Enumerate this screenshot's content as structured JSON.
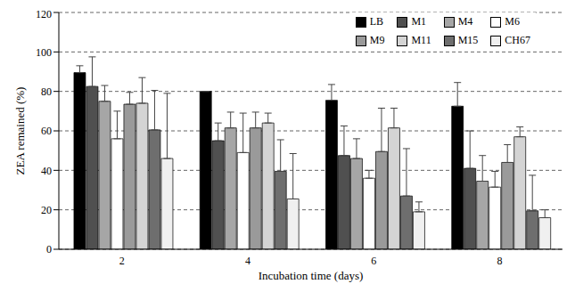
{
  "chart_data": {
    "type": "bar",
    "x_label": "Incubation time (days)",
    "y_label": "ZEA remained (%)",
    "categories": [
      "2",
      "4",
      "6",
      "8"
    ],
    "ylim": [
      0,
      120
    ],
    "yticks": [
      0,
      20,
      40,
      60,
      80,
      100,
      120
    ],
    "grid": true,
    "legend": "upper right",
    "series": [
      {
        "name": "LB",
        "color": "#000000",
        "values": [
          89.5,
          80,
          75.5,
          72.5
        ],
        "errors": [
          3.5,
          0,
          8,
          12
        ]
      },
      {
        "name": "M1",
        "color": "#505050",
        "values": [
          82.5,
          55,
          47.5,
          41
        ],
        "errors": [
          15,
          9,
          15,
          19
        ]
      },
      {
        "name": "M4",
        "color": "#a6a6a6",
        "values": [
          75,
          61.5,
          46,
          34.5
        ],
        "errors": [
          8,
          8,
          10,
          13
        ]
      },
      {
        "name": "M6",
        "color": "#ffffff",
        "values": [
          56,
          49,
          36,
          31.5
        ],
        "errors": [
          14,
          20,
          4,
          8
        ]
      },
      {
        "name": "M9",
        "color": "#9a9a9a",
        "values": [
          73.5,
          61.5,
          49.5,
          44
        ],
        "errors": [
          6,
          8,
          22,
          9
        ]
      },
      {
        "name": "M11",
        "color": "#d4d4d4",
        "values": [
          74,
          64,
          61.5,
          57
        ],
        "errors": [
          13,
          5,
          10,
          5
        ]
      },
      {
        "name": "M15",
        "color": "#6e6e6e",
        "values": [
          60.5,
          39.5,
          27,
          19.5
        ],
        "errors": [
          20,
          16,
          24,
          18
        ]
      },
      {
        "name": "CH67",
        "color": "#f0f0f0",
        "values": [
          46,
          25.5,
          19,
          16
        ],
        "errors": [
          33,
          23,
          5,
          4
        ]
      }
    ]
  }
}
